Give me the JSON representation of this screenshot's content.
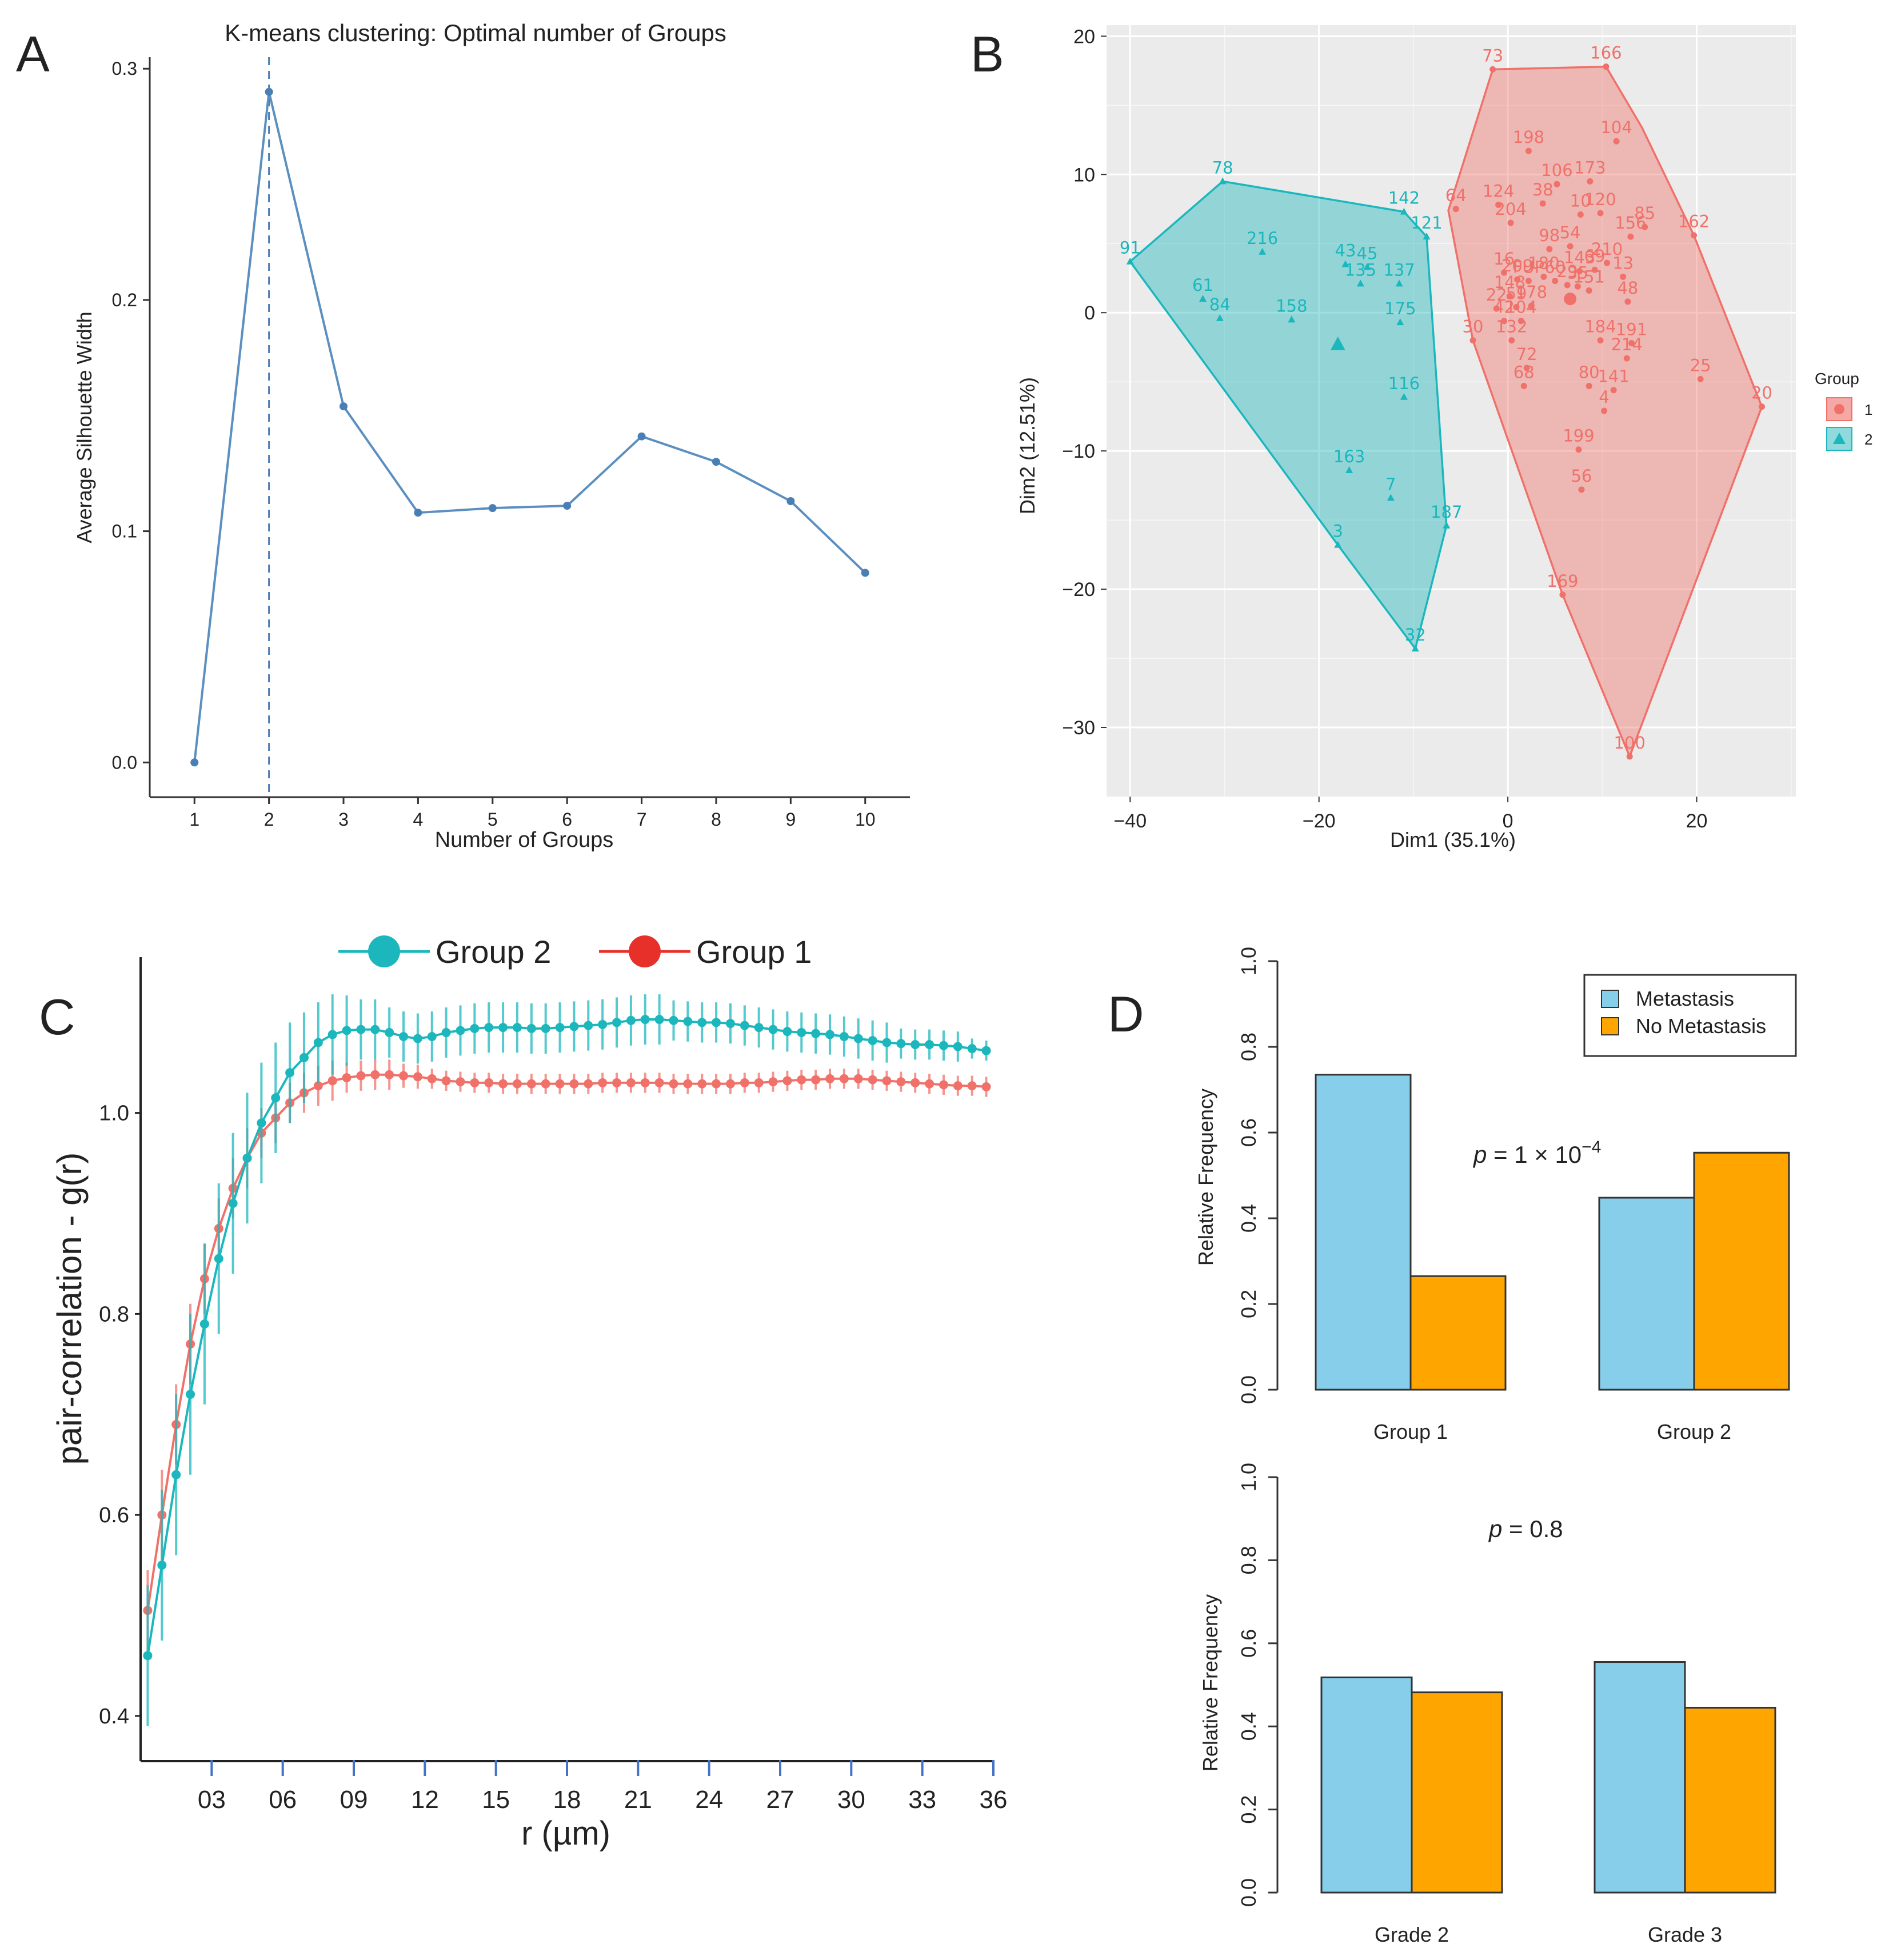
{
  "chart_data": [
    {
      "panel": "A",
      "type": "line",
      "title": "K-means clustering: Optimal number of Groups",
      "xlabel": "Number of Groups",
      "ylabel": "Average Silhouette Width",
      "x": [
        1,
        2,
        3,
        4,
        5,
        6,
        7,
        8,
        9,
        10
      ],
      "y": [
        0.0,
        0.29,
        0.154,
        0.108,
        0.11,
        0.111,
        0.141,
        0.13,
        0.113,
        0.082
      ],
      "xlim": [
        0.4,
        10.6
      ],
      "ylim": [
        -0.015,
        0.305
      ],
      "xticks": [
        "1",
        "2",
        "3",
        "4",
        "5",
        "6",
        "7",
        "8",
        "9",
        "10"
      ],
      "yticks": [
        {
          "v": 0.0,
          "label": "0.0"
        },
        {
          "v": 0.1,
          "label": "0.1"
        },
        {
          "v": 0.2,
          "label": "0.2"
        },
        {
          "v": 0.3,
          "label": "0.3"
        }
      ],
      "vline": 2,
      "color": "#4a7fb5"
    },
    {
      "panel": "B",
      "type": "scatter",
      "xlabel": "Dim1 (35.1%)",
      "ylabel": "Dim2 (12.51%)",
      "xlim": [
        -42.5,
        30.5
      ],
      "ylim": [
        -35,
        20.8
      ],
      "xticks": [
        {
          "v": -40,
          "label": "−40"
        },
        {
          "v": -20,
          "label": "−20"
        },
        {
          "v": 0,
          "label": "0"
        },
        {
          "v": 20,
          "label": "20"
        }
      ],
      "yticks": [
        {
          "v": 20,
          "label": "20"
        },
        {
          "v": 10,
          "label": "10"
        },
        {
          "v": 0,
          "label": "0"
        },
        {
          "v": -10,
          "label": "−10"
        },
        {
          "v": -20,
          "label": "−20"
        },
        {
          "v": -30,
          "label": "−30"
        }
      ],
      "legend": {
        "title": "Group",
        "items": [
          "1",
          "2"
        ]
      },
      "series": [
        {
          "name": "1",
          "color": "#f0716a",
          "centroid": [
            6.6,
            1.0
          ],
          "hull": [
            [
              -1.6,
              17.6
            ],
            [
              10.4,
              17.8
            ],
            [
              14.2,
              13.4
            ],
            [
              19.7,
              5.6
            ],
            [
              26.9,
              -6.8
            ],
            [
              12.9,
              -32.1
            ],
            [
              5.8,
              -20.4
            ],
            [
              -3.7,
              -2.0
            ],
            [
              -6.3,
              7.4
            ]
          ],
          "points": [
            {
              "label": "73",
              "x": -1.6,
              "y": 17.6
            },
            {
              "label": "166",
              "x": 10.4,
              "y": 17.8
            },
            {
              "label": "104",
              "x": 11.5,
              "y": 12.4
            },
            {
              "label": "198",
              "x": 2.2,
              "y": 11.7
            },
            {
              "label": "106",
              "x": 5.2,
              "y": 9.3
            },
            {
              "label": "173",
              "x": 8.7,
              "y": 9.5
            },
            {
              "label": "64",
              "x": -5.5,
              "y": 7.5
            },
            {
              "label": "124",
              "x": -1.0,
              "y": 7.8
            },
            {
              "label": "38",
              "x": 3.7,
              "y": 7.9
            },
            {
              "label": "10",
              "x": 7.7,
              "y": 7.1
            },
            {
              "label": "120",
              "x": 9.8,
              "y": 7.2
            },
            {
              "label": "85",
              "x": 14.5,
              "y": 6.2
            },
            {
              "label": "162",
              "x": 19.7,
              "y": 5.6
            },
            {
              "label": "204",
              "x": 0.3,
              "y": 6.5
            },
            {
              "label": "156",
              "x": 13.0,
              "y": 5.5
            },
            {
              "label": "98",
              "x": 4.4,
              "y": 4.6
            },
            {
              "label": "54",
              "x": 6.6,
              "y": 4.8
            },
            {
              "label": "210",
              "x": 10.5,
              "y": 3.6
            },
            {
              "label": "16",
              "x": -0.4,
              "y": 2.9
            },
            {
              "label": "143",
              "x": 7.6,
              "y": 3.0
            },
            {
              "label": "69",
              "x": 9.2,
              "y": 3.1
            },
            {
              "label": "13",
              "x": 12.2,
              "y": 2.6
            },
            {
              "label": "209",
              "x": 1.0,
              "y": 2.4
            },
            {
              "label": "180",
              "x": 3.8,
              "y": 2.6
            },
            {
              "label": "FUP",
              "x": 2.2,
              "y": 2.3
            },
            {
              "label": "60",
              "x": 5.0,
              "y": 2.3
            },
            {
              "label": "29",
              "x": 6.3,
              "y": 2.0
            },
            {
              "label": "35",
              "x": 7.4,
              "y": 1.9
            },
            {
              "label": "151",
              "x": 8.6,
              "y": 1.6
            },
            {
              "label": "48",
              "x": 12.7,
              "y": 0.8
            },
            {
              "label": "148",
              "x": 0.2,
              "y": 1.2
            },
            {
              "label": "22",
              "x": -1.2,
              "y": 0.3
            },
            {
              "label": "59",
              "x": 0.9,
              "y": 0.4
            },
            {
              "label": "178",
              "x": 2.5,
              "y": 0.5
            },
            {
              "label": "30",
              "x": -3.7,
              "y": -2.0
            },
            {
              "label": "42",
              "x": -0.4,
              "y": -0.6
            },
            {
              "label": "104",
              "x": 1.4,
              "y": -0.6
            },
            {
              "label": "184",
              "x": 9.8,
              "y": -2.0
            },
            {
              "label": "191",
              "x": 13.1,
              "y": -2.2
            },
            {
              "label": "132",
              "x": 0.4,
              "y": -2.0
            },
            {
              "label": "214",
              "x": 12.6,
              "y": -3.3
            },
            {
              "label": "72",
              "x": 2.0,
              "y": -4.0
            },
            {
              "label": "25",
              "x": 20.4,
              "y": -4.8
            },
            {
              "label": "80",
              "x": 8.6,
              "y": -5.3
            },
            {
              "label": "141",
              "x": 11.2,
              "y": -5.6
            },
            {
              "label": "68",
              "x": 1.7,
              "y": -5.3
            },
            {
              "label": "4",
              "x": 10.2,
              "y": -7.1
            },
            {
              "label": "20",
              "x": 26.9,
              "y": -6.8
            },
            {
              "label": "199",
              "x": 7.5,
              "y": -9.9
            },
            {
              "label": "56",
              "x": 7.8,
              "y": -12.8
            },
            {
              "label": "169",
              "x": 5.8,
              "y": -20.4
            },
            {
              "label": "100",
              "x": 12.9,
              "y": -32.1
            }
          ]
        },
        {
          "name": "2",
          "color": "#1bb7bd",
          "centroid": [
            -18.0,
            -2.3
          ],
          "hull": [
            [
              -40.0,
              3.7
            ],
            [
              -30.2,
              9.5
            ],
            [
              -11.0,
              7.3
            ],
            [
              -8.6,
              5.5
            ],
            [
              -6.5,
              -15.4
            ],
            [
              -9.8,
              -24.3
            ],
            [
              -18.0,
              -16.8
            ]
          ],
          "points": [
            {
              "label": "78",
              "x": -30.2,
              "y": 9.5
            },
            {
              "label": "142",
              "x": -11.0,
              "y": 7.3
            },
            {
              "label": "121",
              "x": -8.6,
              "y": 5.5
            },
            {
              "label": "91",
              "x": -40.0,
              "y": 3.7
            },
            {
              "label": "216",
              "x": -26.0,
              "y": 4.4
            },
            {
              "label": "43",
              "x": -17.2,
              "y": 3.5
            },
            {
              "label": "45",
              "x": -14.9,
              "y": 3.3
            },
            {
              "label": "135",
              "x": -15.6,
              "y": 2.1
            },
            {
              "label": "137",
              "x": -11.5,
              "y": 2.1
            },
            {
              "label": "61",
              "x": -32.3,
              "y": 1.0
            },
            {
              "label": "84",
              "x": -30.5,
              "y": -0.4
            },
            {
              "label": "158",
              "x": -22.9,
              "y": -0.5
            },
            {
              "label": "175",
              "x": -11.4,
              "y": -0.7
            },
            {
              "label": "116",
              "x": -11.0,
              "y": -6.1
            },
            {
              "label": "163",
              "x": -16.8,
              "y": -11.4
            },
            {
              "label": "7",
              "x": -12.4,
              "y": -13.4
            },
            {
              "label": "187",
              "x": -6.5,
              "y": -15.4
            },
            {
              "label": "3",
              "x": -18.0,
              "y": -16.8
            },
            {
              "label": "32",
              "x": -9.8,
              "y": -24.3
            }
          ]
        }
      ]
    },
    {
      "panel": "C",
      "type": "line",
      "xlabel": "r (µm)",
      "ylabel": "pair-correlation - g(r)",
      "xlim": [
        0,
        36
      ],
      "ylim": [
        0.355,
        1.155
      ],
      "xticks": [
        {
          "v": 3,
          "label": "03"
        },
        {
          "v": 6,
          "label": "06"
        },
        {
          "v": 9,
          "label": "09"
        },
        {
          "v": 12,
          "label": "12"
        },
        {
          "v": 15,
          "label": "15"
        },
        {
          "v": 18,
          "label": "18"
        },
        {
          "v": 21,
          "label": "21"
        },
        {
          "v": 24,
          "label": "24"
        },
        {
          "v": 27,
          "label": "27"
        },
        {
          "v": 30,
          "label": "30"
        },
        {
          "v": 33,
          "label": "33"
        },
        {
          "v": 36,
          "label": "36"
        }
      ],
      "yticks": [
        {
          "v": 0.4,
          "label": "0.4"
        },
        {
          "v": 0.6,
          "label": "0.6"
        },
        {
          "v": 0.8,
          "label": "0.8"
        },
        {
          "v": 1.0,
          "label": "1.0"
        }
      ],
      "legend": [
        "Group 2",
        "Group 1"
      ],
      "x": [
        0.3,
        0.9,
        1.5,
        2.1,
        2.7,
        3.3,
        3.9,
        4.5,
        5.1,
        5.7,
        6.3,
        6.9,
        7.5,
        8.1,
        8.7,
        9.3,
        9.9,
        10.5,
        11.1,
        11.7,
        12.3,
        12.9,
        13.5,
        14.1,
        14.7,
        15.3,
        15.9,
        16.5,
        17.1,
        17.7,
        18.3,
        18.9,
        19.5,
        20.1,
        20.7,
        21.3,
        21.9,
        22.5,
        23.1,
        23.7,
        24.3,
        24.9,
        25.5,
        26.1,
        26.7,
        27.3,
        27.9,
        28.5,
        29.1,
        29.7,
        30.3,
        30.9,
        31.5,
        32.1,
        32.7,
        33.3,
        33.9,
        34.5,
        35.1,
        35.7
      ],
      "series": [
        {
          "name": "Group 2",
          "color": "#1bb7bd",
          "values": [
            0.46,
            0.55,
            0.64,
            0.72,
            0.79,
            0.855,
            0.91,
            0.955,
            0.99,
            1.015,
            1.04,
            1.055,
            1.07,
            1.078,
            1.082,
            1.083,
            1.083,
            1.08,
            1.076,
            1.074,
            1.076,
            1.08,
            1.082,
            1.084,
            1.085,
            1.085,
            1.085,
            1.084,
            1.084,
            1.085,
            1.086,
            1.087,
            1.088,
            1.09,
            1.092,
            1.093,
            1.093,
            1.092,
            1.091,
            1.09,
            1.09,
            1.089,
            1.087,
            1.085,
            1.083,
            1.081,
            1.08,
            1.079,
            1.078,
            1.076,
            1.074,
            1.072,
            1.07,
            1.069,
            1.068,
            1.068,
            1.067,
            1.066,
            1.064,
            1.062
          ],
          "err": [
            0.07,
            0.075,
            0.08,
            0.08,
            0.08,
            0.075,
            0.07,
            0.065,
            0.06,
            0.055,
            0.05,
            0.045,
            0.04,
            0.04,
            0.035,
            0.03,
            0.03,
            0.025,
            0.025,
            0.025,
            0.025,
            0.025,
            0.025,
            0.025,
            0.025,
            0.025,
            0.025,
            0.025,
            0.025,
            0.025,
            0.025,
            0.025,
            0.025,
            0.025,
            0.025,
            0.025,
            0.025,
            0.02,
            0.02,
            0.02,
            0.02,
            0.02,
            0.02,
            0.02,
            0.02,
            0.02,
            0.02,
            0.02,
            0.02,
            0.02,
            0.02,
            0.02,
            0.02,
            0.015,
            0.015,
            0.015,
            0.015,
            0.015,
            0.01,
            0.01
          ]
        },
        {
          "name": "Group 1",
          "color": "#f0716a",
          "values": [
            0.505,
            0.6,
            0.69,
            0.77,
            0.835,
            0.885,
            0.925,
            0.955,
            0.98,
            0.995,
            1.01,
            1.02,
            1.027,
            1.032,
            1.035,
            1.037,
            1.038,
            1.038,
            1.037,
            1.036,
            1.034,
            1.032,
            1.031,
            1.03,
            1.03,
            1.029,
            1.029,
            1.029,
            1.029,
            1.029,
            1.029,
            1.029,
            1.03,
            1.03,
            1.03,
            1.03,
            1.03,
            1.029,
            1.029,
            1.029,
            1.029,
            1.029,
            1.03,
            1.03,
            1.031,
            1.032,
            1.033,
            1.033,
            1.034,
            1.034,
            1.034,
            1.033,
            1.032,
            1.031,
            1.03,
            1.029,
            1.028,
            1.027,
            1.027,
            1.026
          ],
          "err": [
            0.04,
            0.045,
            0.04,
            0.04,
            0.035,
            0.03,
            0.03,
            0.03,
            0.025,
            0.025,
            0.02,
            0.02,
            0.02,
            0.02,
            0.015,
            0.015,
            0.015,
            0.015,
            0.012,
            0.012,
            0.01,
            0.01,
            0.01,
            0.01,
            0.01,
            0.01,
            0.01,
            0.01,
            0.01,
            0.01,
            0.01,
            0.01,
            0.01,
            0.01,
            0.01,
            0.01,
            0.01,
            0.01,
            0.01,
            0.01,
            0.01,
            0.01,
            0.01,
            0.01,
            0.01,
            0.01,
            0.01,
            0.01,
            0.01,
            0.01,
            0.01,
            0.01,
            0.01,
            0.01,
            0.01,
            0.01,
            0.01,
            0.01,
            0.01,
            0.01
          ]
        }
      ]
    },
    {
      "panel": "D-top",
      "type": "bar",
      "ylabel": "Relative Frequency",
      "categories": [
        "Group 1",
        "Group 2"
      ],
      "series": [
        {
          "name": "Metastasis",
          "color": "#87ceeb",
          "values": [
            0.735,
            0.448
          ]
        },
        {
          "name": "No Metastasis",
          "color": "#ffa500",
          "values": [
            0.265,
            0.553
          ]
        }
      ],
      "ylim": [
        0,
        1.0
      ],
      "yticks": [
        "0.0",
        "0.2",
        "0.4",
        "0.6",
        "0.8",
        "1.0"
      ],
      "annotation": {
        "p_label": "p",
        "p_value": " = 1 × 10",
        "p_exp": "−4"
      },
      "legend": [
        "Metastasis",
        "No Metastasis"
      ]
    },
    {
      "panel": "D-bottom",
      "type": "bar",
      "ylabel": "Relative Frequency",
      "categories": [
        "Grade 2",
        "Grade 3"
      ],
      "series": [
        {
          "name": "Metastasis",
          "color": "#87ceeb",
          "values": [
            0.518,
            0.555
          ]
        },
        {
          "name": "No Metastasis",
          "color": "#ffa500",
          "values": [
            0.482,
            0.445
          ]
        }
      ],
      "ylim": [
        0,
        1.0
      ],
      "yticks": [
        "0.0",
        "0.2",
        "0.4",
        "0.6",
        "0.8",
        "1.0"
      ],
      "annotation": {
        "p_label": "p",
        "p_value": " = 0.8"
      }
    }
  ],
  "panel_labels": [
    "A",
    "B",
    "C",
    "D"
  ]
}
